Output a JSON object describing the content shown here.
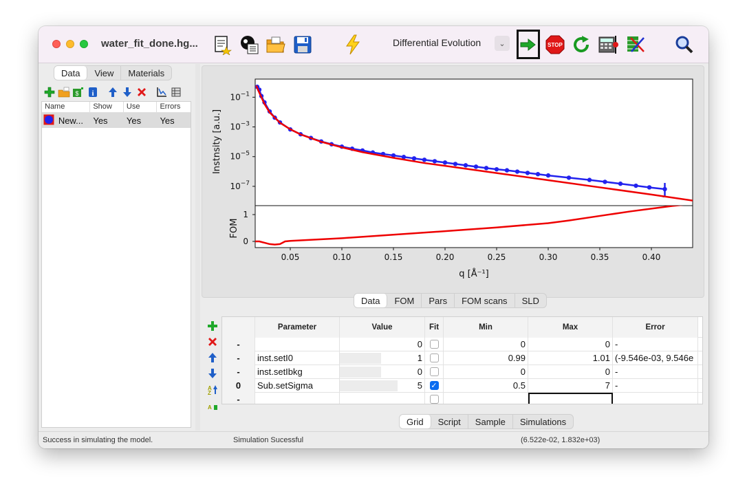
{
  "window": {
    "title": "water_fit_done.hg..."
  },
  "toolbar": {
    "algorithm": "Differential Evolution",
    "icons": [
      "new-model-icon",
      "open-model-icon",
      "open-folder-icon",
      "save-icon",
      "simulate-icon",
      "start-fit-icon",
      "stop-fit-icon",
      "restart-fit-icon",
      "calculate-errors-icon",
      "scan-parameter-icon",
      "zoom-icon"
    ]
  },
  "left_panel": {
    "tabs": [
      "Data",
      "View",
      "Materials"
    ],
    "active_tab": "Data",
    "columns": [
      "Name",
      "Show",
      "Use",
      "Errors"
    ],
    "rows": [
      {
        "name": "New...",
        "show": "Yes",
        "use": "Yes",
        "errors": "Yes"
      }
    ]
  },
  "plot_tabs": [
    "Data",
    "FOM",
    "Pars",
    "FOM scans",
    "SLD"
  ],
  "chart_data": [
    {
      "type": "line",
      "ylabel": "Instnsity [a.u.]",
      "yscale": "log",
      "yticks": [
        "10^-1",
        "10^-3",
        "10^-5",
        "10^-7"
      ],
      "xlim": [
        0.016,
        0.44
      ],
      "series": [
        {
          "color": "#2222ee",
          "marker": "circle",
          "x": [
            0.018,
            0.02,
            0.022,
            0.025,
            0.03,
            0.035,
            0.04,
            0.05,
            0.06,
            0.07,
            0.08,
            0.09,
            0.1,
            0.11,
            0.12,
            0.13,
            0.14,
            0.15,
            0.16,
            0.17,
            0.18,
            0.19,
            0.2,
            0.21,
            0.22,
            0.23,
            0.24,
            0.25,
            0.26,
            0.27,
            0.28,
            0.29,
            0.3,
            0.32,
            0.34,
            0.355,
            0.37,
            0.385,
            0.398,
            0.413
          ],
          "y": [
            0.5,
            0.32,
            0.12,
            0.045,
            0.011,
            0.0042,
            0.002,
            0.00068,
            0.00032,
            0.00018,
            0.000105,
            6.8e-05,
            4.7e-05,
            3.4e-05,
            2.6e-05,
            1.9e-05,
            1.5e-05,
            1.2e-05,
            9.5e-06,
            7.6e-06,
            6.1e-06,
            4.9e-06,
            4e-06,
            3.2e-06,
            2.6e-06,
            2.1e-06,
            1.7e-06,
            1.4e-06,
            1.2e-06,
            9.8e-07,
            8e-07,
            6.6e-07,
            5.4e-07,
            3.8e-07,
            2.7e-07,
            2e-07,
            1.5e-07,
            1.1e-07,
            8.5e-08,
            6.5e-08
          ]
        },
        {
          "color": "#ee0000",
          "x": [
            0.017,
            0.02,
            0.025,
            0.03,
            0.04,
            0.05,
            0.06,
            0.08,
            0.1,
            0.12,
            0.15,
            0.18,
            0.2,
            0.25,
            0.3,
            0.35,
            0.4,
            0.44
          ],
          "y": [
            0.6,
            0.2,
            0.035,
            0.0095,
            0.0019,
            0.0007,
            0.00031,
            0.0001,
            4.2e-05,
            2e-05,
            8.3e-06,
            3.7e-06,
            2.4e-06,
            7.8e-07,
            2.6e-07,
            8.5e-08,
            2.8e-08,
            1.1e-08
          ]
        }
      ]
    },
    {
      "type": "line",
      "ylabel": "FOM",
      "xlabel": "q [Å⁻¹]",
      "xticks": [
        "0.05",
        "0.10",
        "0.15",
        "0.20",
        "0.25",
        "0.30",
        "0.35",
        "0.40"
      ],
      "yticks": [
        "0",
        "1"
      ],
      "xlim": [
        0.016,
        0.44
      ],
      "series": [
        {
          "color": "#ee0000",
          "x": [
            0.016,
            0.02,
            0.025,
            0.03,
            0.035,
            0.04,
            0.045,
            0.05,
            0.1,
            0.15,
            0.2,
            0.25,
            0.3,
            0.32,
            0.35,
            0.38,
            0.4,
            0.42,
            0.44
          ],
          "y": [
            0.0,
            0.0,
            -0.05,
            -0.1,
            -0.12,
            -0.1,
            0.0,
            0.02,
            0.12,
            0.25,
            0.38,
            0.52,
            0.68,
            0.78,
            0.95,
            1.12,
            1.22,
            1.32,
            1.4
          ]
        }
      ]
    }
  ],
  "param_table": {
    "headers": [
      "",
      "Parameter",
      "Value",
      "Fit",
      "Min",
      "Max",
      "Error"
    ],
    "rows": [
      {
        "hdr": "-",
        "parameter": "",
        "value": "0",
        "fit": false,
        "min": "0",
        "max": "0",
        "error": "-"
      },
      {
        "hdr": "-",
        "parameter": "inst.setI0",
        "value": "1",
        "fit": false,
        "min": "0.99",
        "max": "1.01",
        "error": "(-9.546e-03, 9.546e"
      },
      {
        "hdr": "-",
        "parameter": "inst.setIbkg",
        "value": "0",
        "fit": false,
        "min": "0",
        "max": "0",
        "error": "-"
      },
      {
        "hdr": "0",
        "parameter": "Sub.setSigma",
        "value": "5",
        "fit": true,
        "min": "0.5",
        "max": "7",
        "error": "-"
      },
      {
        "hdr": "-",
        "parameter": "",
        "value": "",
        "fit": false,
        "min": "",
        "max": "",
        "error": ""
      }
    ]
  },
  "lower_tabs": [
    "Grid",
    "Script",
    "Sample",
    "Simulations"
  ],
  "status": {
    "left": "Success in simulating the model.",
    "mid": "Simulation Sucessful",
    "right": "(6.522e-02, 1.832e+03)"
  }
}
